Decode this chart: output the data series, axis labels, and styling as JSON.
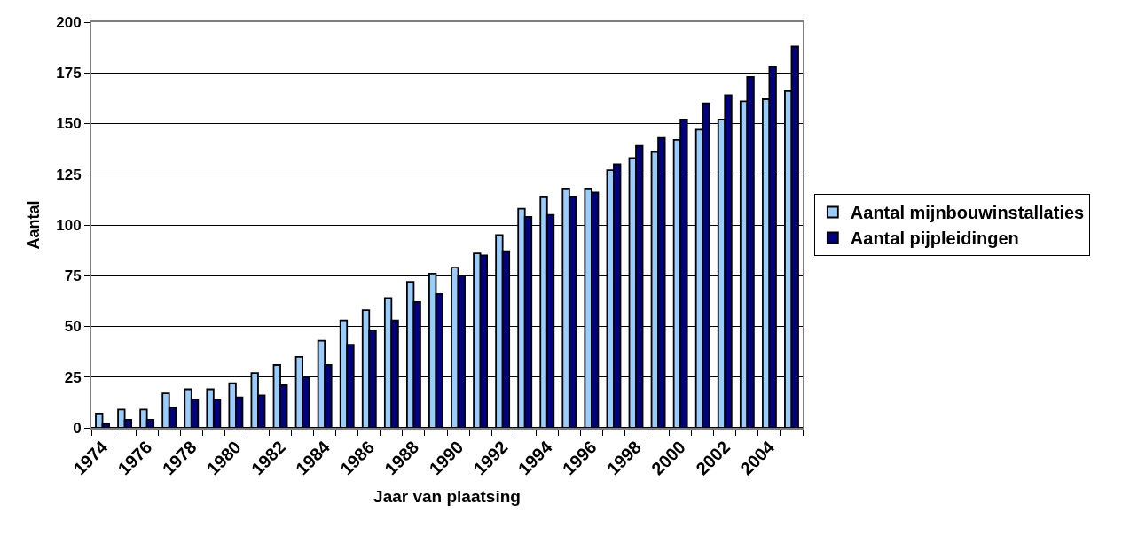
{
  "chart_data": {
    "type": "bar",
    "xlabel": "Jaar van plaatsing",
    "ylabel": "Aantal",
    "categories": [
      "1974",
      null,
      "1976",
      null,
      "1978",
      null,
      "1980",
      null,
      "1982",
      null,
      "1984",
      null,
      "1986",
      null,
      "1988",
      null,
      "1990",
      null,
      "1992",
      null,
      "1994",
      null,
      "1996",
      null,
      "1998",
      null,
      "2000",
      null,
      "2002",
      null,
      "2004",
      null
    ],
    "series": [
      {
        "name": "Aantal mijnbouwinstallaties",
        "color": "#99ccff",
        "values": [
          7,
          9,
          9,
          17,
          19,
          19,
          22,
          27,
          31,
          35,
          43,
          53,
          58,
          64,
          72,
          76,
          79,
          86,
          95,
          108,
          114,
          118,
          118,
          127,
          133,
          136,
          142,
          147,
          152,
          161,
          162,
          166
        ]
      },
      {
        "name": "Aantal pijpleidingen",
        "color": "#000080",
        "values": [
          2,
          4,
          4,
          10,
          14,
          14,
          15,
          16,
          21,
          25,
          31,
          41,
          48,
          53,
          62,
          66,
          75,
          85,
          87,
          104,
          105,
          114,
          116,
          130,
          139,
          143,
          152,
          160,
          164,
          173,
          178,
          188
        ]
      }
    ],
    "ylim": [
      0,
      200
    ],
    "yticks": [
      0,
      25,
      50,
      75,
      100,
      125,
      150,
      175,
      200
    ],
    "grid": "y",
    "legend": "right"
  }
}
